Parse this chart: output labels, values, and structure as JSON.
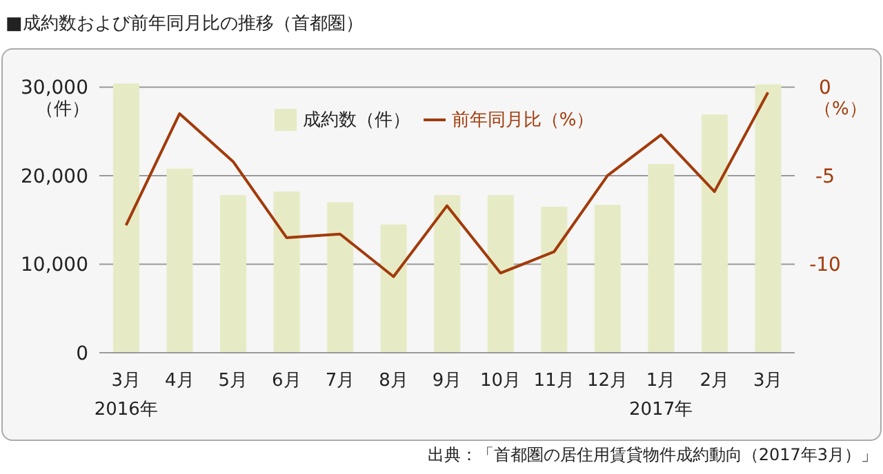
{
  "chart_data": {
    "type": "bar",
    "title": "■成約数および前年同月比の推移（首都圏）",
    "categories": [
      "3月\n2016年",
      "4月",
      "5月",
      "6月",
      "7月",
      "8月",
      "9月",
      "10月",
      "11月",
      "12月",
      "1月\n2017年",
      "2月",
      "3月"
    ],
    "series": [
      {
        "name": "成約数（件）",
        "color": "#e6ebc5",
        "values": [
          30400,
          20800,
          17800,
          18200,
          17000,
          14500,
          17800,
          17800,
          16500,
          16700,
          21300,
          26900,
          30300
        ]
      },
      {
        "name": "前年同月比（%）",
        "type": "line",
        "axis": "y2",
        "color": "#a23a0a",
        "values": [
          -7.8,
          -1.5,
          -4.2,
          -8.5,
          -8.3,
          -10.7,
          -6.7,
          -10.5,
          -9.3,
          -5.0,
          -2.7,
          -5.9,
          -0.3
        ]
      }
    ],
    "ylabel": "（件）",
    "y2label": "（%）",
    "ylim": [
      0,
      30500
    ],
    "yticks": [
      {
        "value": 0,
        "label": "0"
      },
      {
        "value": 10000,
        "label": "10,000"
      },
      {
        "value": 20000,
        "label": "20,000"
      },
      {
        "value": 30000,
        "label": "30,000"
      }
    ],
    "y2lim": [
      -15,
      0.25
    ],
    "y2ticks": [
      0,
      -5,
      -10
    ],
    "grid": "y",
    "legend": "top",
    "marker": "none",
    "annotations": [
      "出典：「首都圏の居住用賃貸物件成約動向（2017年3月）」"
    ]
  }
}
